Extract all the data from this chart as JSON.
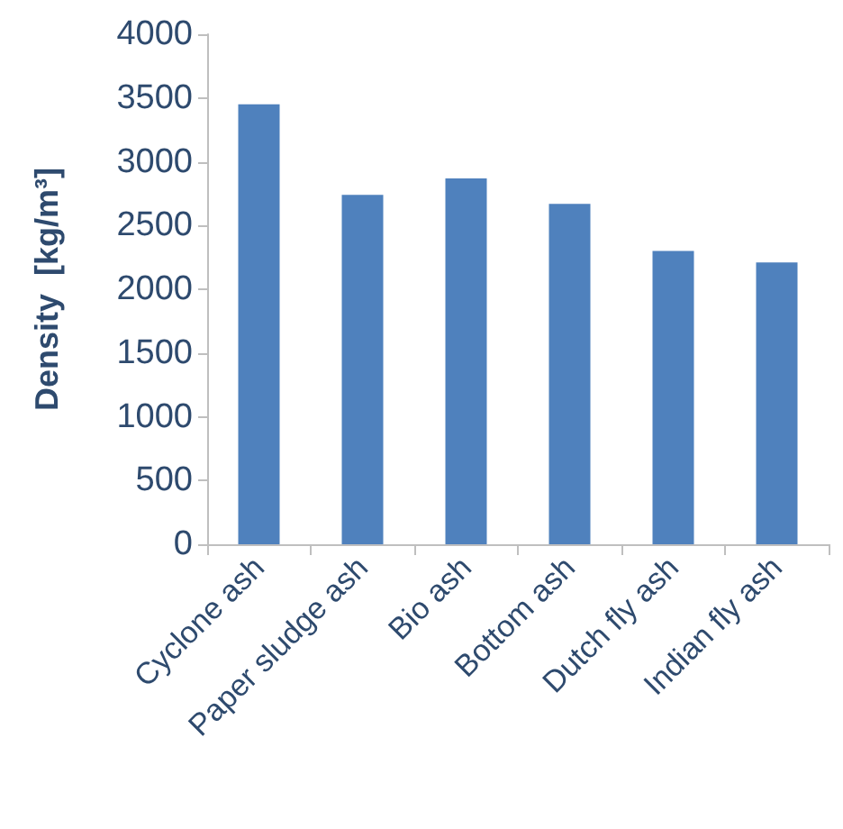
{
  "chart_data": {
    "type": "bar",
    "ylabel": "Density  [kg/m³]",
    "categories": [
      "Cyclone ash",
      "Paper sludge ash",
      "Bio ash",
      "Bottom ash",
      "Dutch fly ash",
      "Indian fly ash"
    ],
    "values": [
      3450,
      2740,
      2870,
      2670,
      2300,
      2210
    ],
    "color": "#4f81bd",
    "ylim": [
      0,
      4000
    ],
    "yticks": [
      0,
      500,
      1000,
      1500,
      2000,
      2500,
      3000,
      3500,
      4000
    ],
    "grid": false
  }
}
